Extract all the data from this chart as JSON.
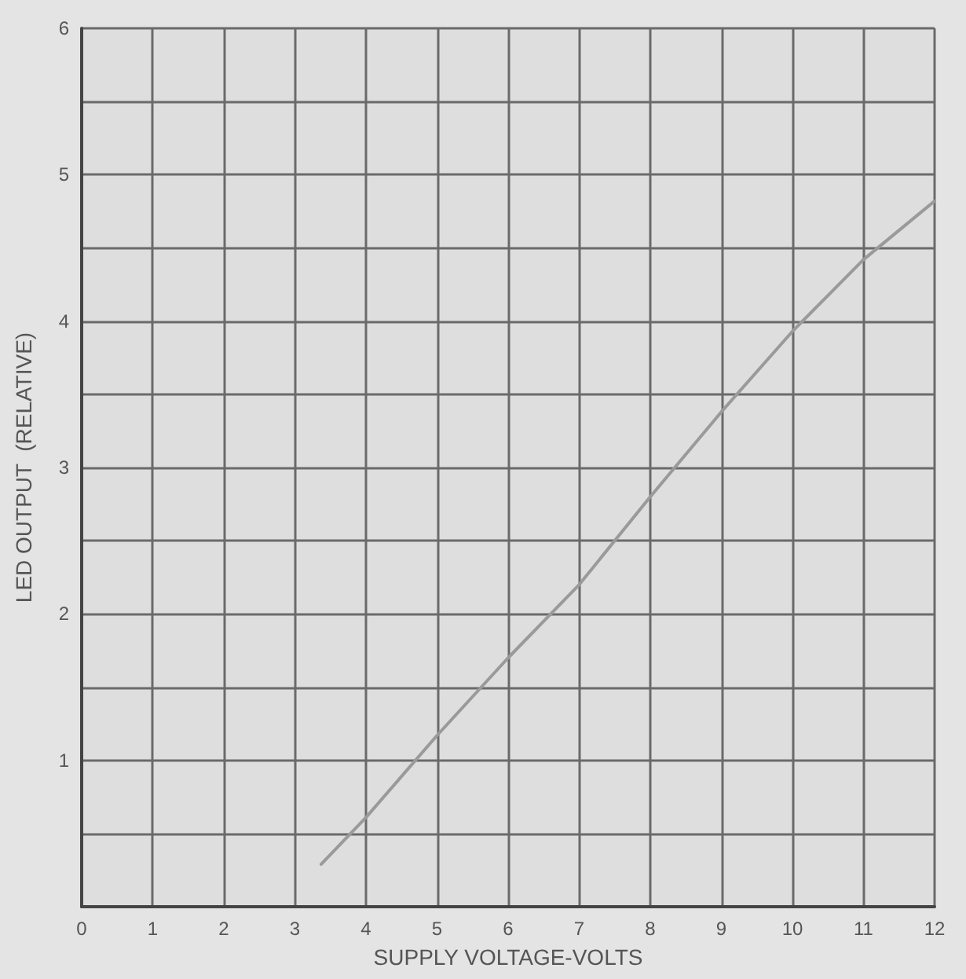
{
  "chart_data": {
    "type": "line",
    "xlabel": "SUPPLY VOLTAGE-VOLTS",
    "ylabel": "LED OUTPUT  (RELATIVE)",
    "x": [
      3.37,
      4,
      5,
      6,
      7,
      8,
      9,
      10,
      11,
      12
    ],
    "series": [
      {
        "color": "#9a9a9a",
        "values": [
          0.29,
          0.61,
          1.17,
          1.7,
          2.2,
          2.8,
          3.38,
          3.93,
          4.42,
          4.82
        ]
      }
    ],
    "xlim": [
      0,
      12
    ],
    "xticks": [
      0,
      1,
      2,
      3,
      4,
      5,
      6,
      7,
      8,
      9,
      10,
      11,
      12
    ],
    "ylim": [
      0,
      6
    ],
    "yticks": [
      {
        "value": 0.5,
        "label": null
      },
      1,
      {
        "value": 1.5,
        "label": null
      },
      2,
      {
        "value": 2.5,
        "label": null
      },
      3,
      {
        "value": 3.5,
        "label": null
      },
      4,
      {
        "value": 4.5,
        "label": null
      },
      5,
      {
        "value": 5.5,
        "label": null
      },
      6
    ],
    "grid": true,
    "marker": "none",
    "line_style": "solid"
  }
}
